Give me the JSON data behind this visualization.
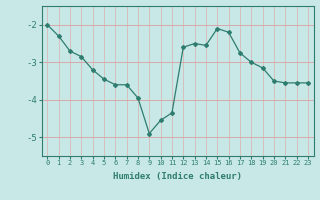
{
  "x": [
    0,
    1,
    2,
    3,
    4,
    5,
    6,
    7,
    8,
    9,
    10,
    11,
    12,
    13,
    14,
    15,
    16,
    17,
    18,
    19,
    20,
    21,
    22,
    23
  ],
  "y": [
    -2.0,
    -2.3,
    -2.7,
    -2.85,
    -3.2,
    -3.45,
    -3.6,
    -3.6,
    -3.95,
    -4.9,
    -4.55,
    -4.35,
    -2.6,
    -2.5,
    -2.55,
    -2.1,
    -2.2,
    -2.75,
    -3.0,
    -3.15,
    -3.5,
    -3.55,
    -3.55,
    -3.55
  ],
  "line_color": "#2e7d6e",
  "marker": "D",
  "marker_size": 2,
  "bg_color": "#c8e8e8",
  "grid_color_h": "#d8a0a0",
  "grid_color_v": "#d8b8b8",
  "xlabel": "Humidex (Indice chaleur)",
  "xlim": [
    -0.5,
    23.5
  ],
  "ylim": [
    -5.5,
    -1.5
  ],
  "yticks": [
    -5,
    -4,
    -3,
    -2
  ],
  "xticks": [
    0,
    1,
    2,
    3,
    4,
    5,
    6,
    7,
    8,
    9,
    10,
    11,
    12,
    13,
    14,
    15,
    16,
    17,
    18,
    19,
    20,
    21,
    22,
    23
  ]
}
